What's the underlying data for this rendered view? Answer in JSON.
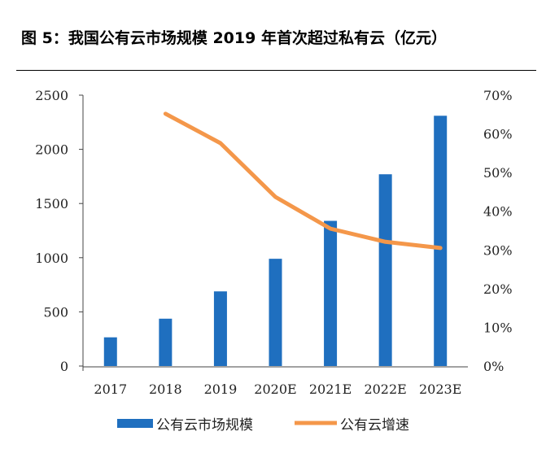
{
  "title": "图 5：我国公有云市场规模 2019 年首次超过私有云（亿元）",
  "chart_data": {
    "type": "bar+line",
    "categories": [
      "2017",
      "2018",
      "2019",
      "2020E",
      "2021E",
      "2022E",
      "2023E"
    ],
    "series": [
      {
        "name": "公有云市场规模",
        "type": "bar",
        "axis": "left",
        "color": "#1f6fbf",
        "values": [
          265,
          437,
          689,
          990,
          1340,
          1770,
          2310
        ]
      },
      {
        "name": "公有云增速",
        "type": "line",
        "axis": "right",
        "color": "#f4974a",
        "values": [
          null,
          65.2,
          57.6,
          43.7,
          35.5,
          32.1,
          30.5
        ]
      }
    ],
    "y_left": {
      "min": 0,
      "max": 2500,
      "ticks": [
        "0",
        "500",
        "1000",
        "1500",
        "2000",
        "2500"
      ]
    },
    "y_right": {
      "min": 0,
      "max": 70,
      "ticks": [
        "0%",
        "10%",
        "20%",
        "30%",
        "40%",
        "50%",
        "60%",
        "70%"
      ]
    },
    "legend_position": "bottom",
    "grid": false
  }
}
